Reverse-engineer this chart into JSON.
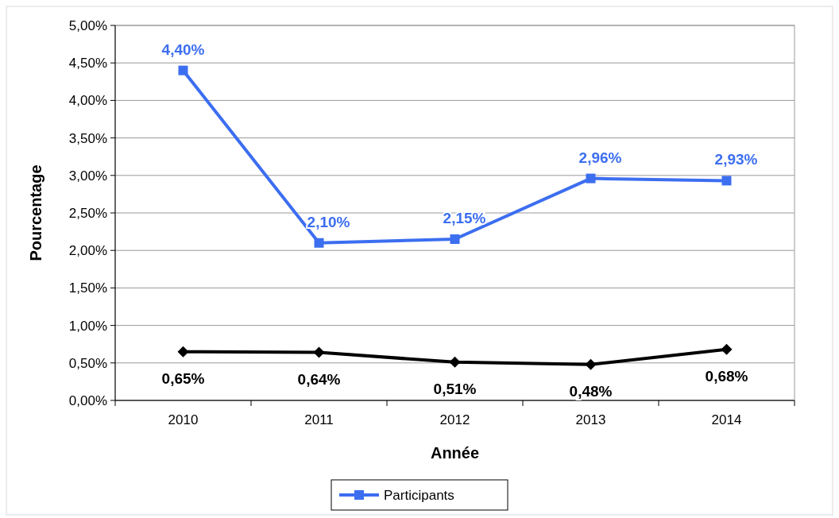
{
  "chart_data": {
    "type": "line",
    "xlabel": "Année",
    "ylabel": "Pourcentage",
    "categories": [
      "2010",
      "2011",
      "2012",
      "2013",
      "2014"
    ],
    "series": [
      {
        "color": "#000000",
        "marker": "diamond",
        "values": [
          0.65,
          0.64,
          0.51,
          0.48,
          0.68
        ],
        "value_labels": [
          "0,65%",
          "0,64%",
          "0,51%",
          "0,48%",
          "0,68%"
        ]
      },
      {
        "name": "Participants",
        "color": "#3c6ef0",
        "marker": "square",
        "values": [
          4.4,
          2.1,
          2.15,
          2.96,
          2.93
        ],
        "value_labels": [
          "4,40%",
          "2,10%",
          "2,15%",
          "2,96%",
          "2,93%"
        ]
      }
    ],
    "ylim": [
      0,
      5
    ],
    "yticks": [
      {
        "value": 0,
        "label": "0,00%"
      },
      {
        "value": 0.5,
        "label": "0,50%"
      },
      {
        "value": 1,
        "label": "1,00%"
      },
      {
        "value": 1.5,
        "label": "1,50%"
      },
      {
        "value": 2,
        "label": "2,00%"
      },
      {
        "value": 2.5,
        "label": "2,50%"
      },
      {
        "value": 3,
        "label": "3,00%"
      },
      {
        "value": 3.5,
        "label": "3,50%"
      },
      {
        "value": 4,
        "label": "4,00%"
      },
      {
        "value": 4.5,
        "label": "4,50%"
      },
      {
        "value": 5,
        "label": "5,00%"
      }
    ],
    "grid": "y",
    "legend": "bottom",
    "line_style": "solid"
  }
}
